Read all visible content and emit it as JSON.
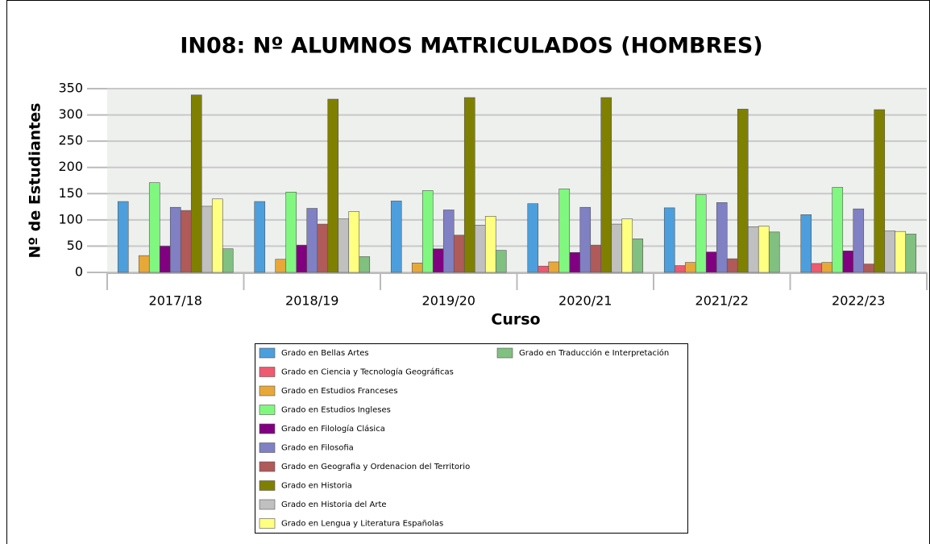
{
  "chart_data": {
    "type": "bar",
    "title": "IN08: Nº ALUMNOS MATRICULADOS (HOMBRES)",
    "x_label": "Curso",
    "y_label": "Nº de Estudiantes",
    "categories": [
      "2017/18",
      "2018/19",
      "2019/20",
      "2020/21",
      "2021/22",
      "2022/23"
    ],
    "series": [
      {
        "name": "Grado en Bellas Artes",
        "color": "#4c9fdc",
        "values": [
          135,
          135,
          136,
          131,
          123,
          110
        ]
      },
      {
        "name": "Grado en Ciencia y Tecnología Geográficas",
        "color": "#ee5a70",
        "values": [
          0,
          0,
          0,
          12,
          13,
          17
        ]
      },
      {
        "name": "Grado en Estudios Franceses",
        "color": "#e8a838",
        "values": [
          32,
          25,
          18,
          20,
          19,
          19
        ]
      },
      {
        "name": "Grado en Estudios Ingleses",
        "color": "#80f880",
        "values": [
          171,
          153,
          156,
          159,
          148,
          162
        ]
      },
      {
        "name": "Grado en Filología Clásica",
        "color": "#800080",
        "values": [
          50,
          52,
          45,
          38,
          39,
          41
        ]
      },
      {
        "name": "Grado en Filosofia",
        "color": "#8080c4",
        "values": [
          124,
          122,
          119,
          124,
          133,
          121
        ]
      },
      {
        "name": "Grado en Geografia y Ordenacion del Territorio",
        "color": "#b05a5a",
        "values": [
          118,
          92,
          71,
          52,
          26,
          16
        ]
      },
      {
        "name": "Grado en Historia",
        "color": "#808000",
        "values": [
          338,
          330,
          333,
          333,
          311,
          310
        ]
      },
      {
        "name": "Grado en Historia del Arte",
        "color": "#c0c0c0",
        "values": [
          126,
          102,
          90,
          92,
          87,
          79
        ]
      },
      {
        "name": "Grado en Lengua y Literatura Españolas",
        "color": "#ffff80",
        "values": [
          140,
          116,
          107,
          102,
          88,
          78
        ]
      },
      {
        "name": "Grado en Traducción e Interpretación",
        "color": "#80c080",
        "values": [
          45,
          30,
          42,
          64,
          77,
          73
        ]
      }
    ],
    "ylim": [
      0,
      350
    ],
    "yticks": [
      0,
      50,
      100,
      150,
      200,
      250,
      300,
      350
    ],
    "grid": true,
    "legend": "bottom"
  }
}
